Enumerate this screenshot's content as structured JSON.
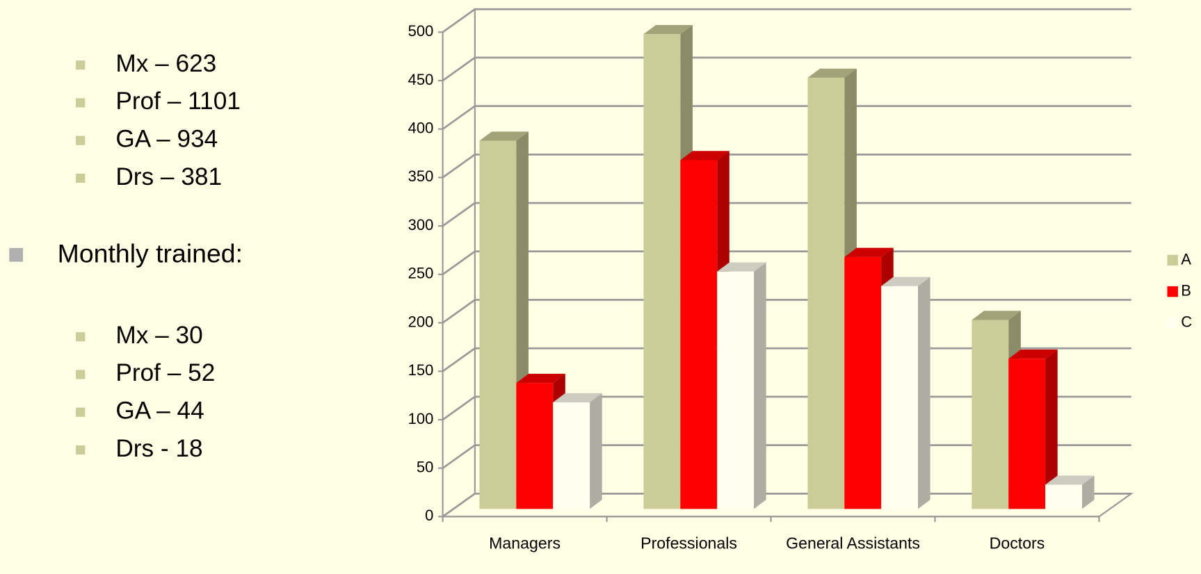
{
  "totals": [
    "Mx – 623",
    "Prof – 1101",
    "GA – 934",
    "Drs – 381"
  ],
  "heading": "Monthly trained:",
  "monthly": [
    "Mx – 30",
    "Prof – 52",
    "GA – 44",
    "Drs - 18"
  ],
  "chart_data": {
    "type": "bar3d",
    "categories": [
      "Managers",
      "Professionals",
      "General Assistants",
      "Doctors"
    ],
    "series": [
      {
        "name": "A",
        "color": "#cccc99",
        "values": [
          380,
          490,
          445,
          195
        ]
      },
      {
        "name": "B",
        "color": "#ff0000",
        "values": [
          130,
          360,
          260,
          155
        ]
      },
      {
        "name": "C",
        "color": "#fffff0",
        "values": [
          110,
          245,
          230,
          25
        ]
      }
    ],
    "ylim": [
      0,
      500
    ],
    "yticks": [
      0,
      50,
      100,
      150,
      200,
      250,
      300,
      350,
      400,
      450,
      500
    ],
    "grid": true,
    "legend": "right"
  }
}
